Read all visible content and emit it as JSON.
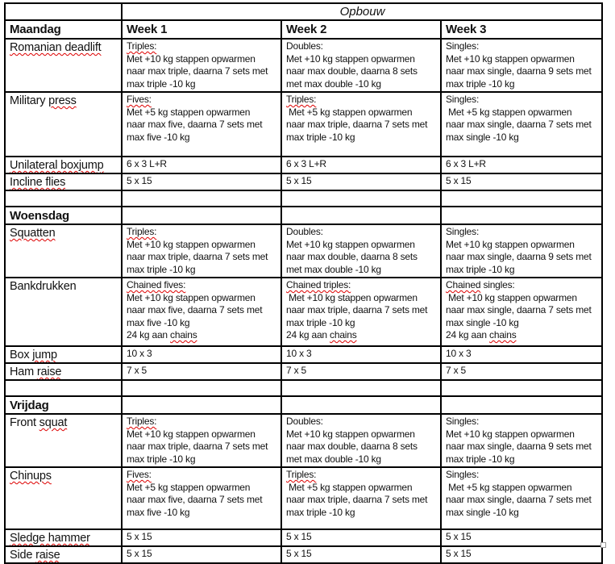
{
  "colors": {
    "background": "#ffffff",
    "text": "#111111",
    "border": "#000000",
    "squiggle": "#dd0000",
    "handle": "#999999"
  },
  "icons": {
    "resize_handle": "square-outline"
  },
  "table": {
    "title": "Opbouw",
    "columns": [
      "Week 1",
      "Week 2",
      "Week 3"
    ],
    "rows": [
      {
        "type": "title",
        "title": "Opbouw"
      },
      {
        "type": "header",
        "label": "Maandag",
        "cells": [
          "Week 1",
          "Week 2",
          "Week 3"
        ]
      },
      {
        "type": "exercise",
        "label": "Romanian deadlift",
        "label_squiggle": [
          "Romanian deadlift"
        ],
        "cells": [
          {
            "text": "Triples:\nMet +10 kg stappen opwarmen\nnaar max triple, daarna 7 sets met\nmax triple -10 kg",
            "squiggle": [
              "Triples:"
            ]
          },
          {
            "text": "Doubles:\nMet +10 kg stappen opwarmen\nnaar max double, daarna 8 sets\nmet max double -10 kg",
            "squiggle": []
          },
          {
            "text": "Singles:\nMet +10 kg stappen opwarmen\nnaar max single, daarna 9 sets met\nmax triple -10 kg",
            "squiggle": []
          }
        ]
      },
      {
        "type": "exercise",
        "label": "Military press",
        "label_squiggle": [
          "press"
        ],
        "cells": [
          {
            "text": "Fives:\nMet +5 kg stappen opwarmen\nnaar max five, daarna 7 sets met\nmax five -10 kg",
            "squiggle": [
              "Fives:"
            ]
          },
          {
            "text": "Triples:\n Met +5 kg stappen opwarmen\nnaar max triple, daarna 7 sets met\nmax triple -10 kg",
            "squiggle": [
              "Triples:"
            ]
          },
          {
            "text": "Singles:\n Met +5 kg stappen opwarmen\nnaar max single, daarna 7 sets met\nmax single -10 kg",
            "squiggle": []
          }
        ]
      },
      {
        "type": "exercise",
        "label": "Unilateral boxjump",
        "label_squiggle": [
          "Unilateral boxjump"
        ],
        "cells": [
          {
            "text": "6 x 3 L+R",
            "squiggle": []
          },
          {
            "text": "6 x 3 L+R",
            "squiggle": []
          },
          {
            "text": "6 x 3 L+R",
            "squiggle": []
          }
        ]
      },
      {
        "type": "exercise",
        "label": "Incline flies",
        "label_squiggle": [
          "Incline flies"
        ],
        "cells": [
          {
            "text": "5 x 15",
            "squiggle": []
          },
          {
            "text": "5 x 15",
            "squiggle": []
          },
          {
            "text": "5 x 15",
            "squiggle": []
          }
        ]
      },
      {
        "type": "spacer"
      },
      {
        "type": "day",
        "label": "Woensdag"
      },
      {
        "type": "exercise",
        "label": "Squatten",
        "label_squiggle": [
          "Squatten"
        ],
        "cells": [
          {
            "text": "Triples:\nMet +10 kg stappen opwarmen\nnaar max triple, daarna 7 sets met\nmax triple -10 kg",
            "squiggle": [
              "Triples:"
            ]
          },
          {
            "text": "Doubles:\nMet +10 kg stappen opwarmen\nnaar max double, daarna 8 sets\nmet max double -10 kg",
            "squiggle": []
          },
          {
            "text": "Singles:\nMet +10 kg stappen opwarmen\nnaar max single, daarna 9 sets met\nmax triple -10 kg",
            "squiggle": []
          }
        ]
      },
      {
        "type": "exercise",
        "label": "Bankdrukken",
        "label_squiggle": [],
        "cells": [
          {
            "text": "Chained fives:\nMet +10 kg stappen opwarmen\nnaar max five, daarna 7 sets met\nmax five -10 kg\n24 kg aan chains",
            "squiggle": [
              "Chained fives:",
              "chains"
            ]
          },
          {
            "text": "Chained triples:\n Met +10 kg stappen opwarmen\nnaar max triple, daarna 7 sets met\nmax triple -10 kg\n24 kg aan chains",
            "squiggle": [
              "Chained triples:",
              "chains"
            ]
          },
          {
            "text": "Chained singles:\n Met +10 kg stappen opwarmen\nnaar max single, daarna 7 sets met\nmax single -10 kg\n24 kg aan chains",
            "squiggle": [
              "Chained",
              "chains"
            ]
          }
        ]
      },
      {
        "type": "exercise",
        "label": "Box jump",
        "label_squiggle": [
          "jump"
        ],
        "cells": [
          {
            "text": "10 x 3",
            "squiggle": []
          },
          {
            "text": "10 x 3",
            "squiggle": []
          },
          {
            "text": "10 x 3",
            "squiggle": []
          }
        ]
      },
      {
        "type": "exercise",
        "label": "Ham raise",
        "label_squiggle": [
          "raise"
        ],
        "cells": [
          {
            "text": "7 x 5",
            "squiggle": []
          },
          {
            "text": "7 x 5",
            "squiggle": []
          },
          {
            "text": "7 x 5",
            "squiggle": []
          }
        ]
      },
      {
        "type": "spacer"
      },
      {
        "type": "day",
        "label": "Vrijdag"
      },
      {
        "type": "exercise",
        "label": "Front squat",
        "label_squiggle": [
          "squat"
        ],
        "cells": [
          {
            "text": "Triples:\nMet +10 kg stappen opwarmen\nnaar max triple, daarna 7 sets met\nmax triple -10 kg",
            "squiggle": [
              "Triples:"
            ]
          },
          {
            "text": "Doubles:\nMet +10 kg stappen opwarmen\nnaar max double, daarna 8 sets\nmet max double -10 kg",
            "squiggle": []
          },
          {
            "text": "Singles:\nMet +10 kg stappen opwarmen\nnaar max single, daarna 9 sets met\nmax triple -10 kg",
            "squiggle": []
          }
        ]
      },
      {
        "type": "exercise",
        "label": "Chinups",
        "label_squiggle": [
          "Chinups"
        ],
        "cells": [
          {
            "text": "Fives:\nMet +5 kg stappen opwarmen\nnaar max five, daarna 7 sets met\nmax five -10 kg",
            "squiggle": [
              "Fives:"
            ]
          },
          {
            "text": "Triples:\n Met +5 kg stappen opwarmen\nnaar max triple, daarna 7 sets met\nmax triple -10 kg",
            "squiggle": [
              "Triples:"
            ]
          },
          {
            "text": "Singles:\n Met +5 kg stappen opwarmen\nnaar max single, daarna 7 sets met\nmax single -10 kg",
            "squiggle": []
          }
        ]
      },
      {
        "type": "exercise",
        "label": "Sledge hammer",
        "label_squiggle": [
          "Sledge hammer"
        ],
        "cells": [
          {
            "text": "5 x 15",
            "squiggle": []
          },
          {
            "text": "5 x 15",
            "squiggle": []
          },
          {
            "text": "5 x 15",
            "squiggle": []
          }
        ]
      },
      {
        "type": "exercise",
        "label": "Side raise",
        "label_squiggle": [
          "raise"
        ],
        "cells": [
          {
            "text": "5 x 15",
            "squiggle": []
          },
          {
            "text": "5 x 15",
            "squiggle": []
          },
          {
            "text": "5 x 15",
            "squiggle": []
          }
        ]
      }
    ]
  }
}
